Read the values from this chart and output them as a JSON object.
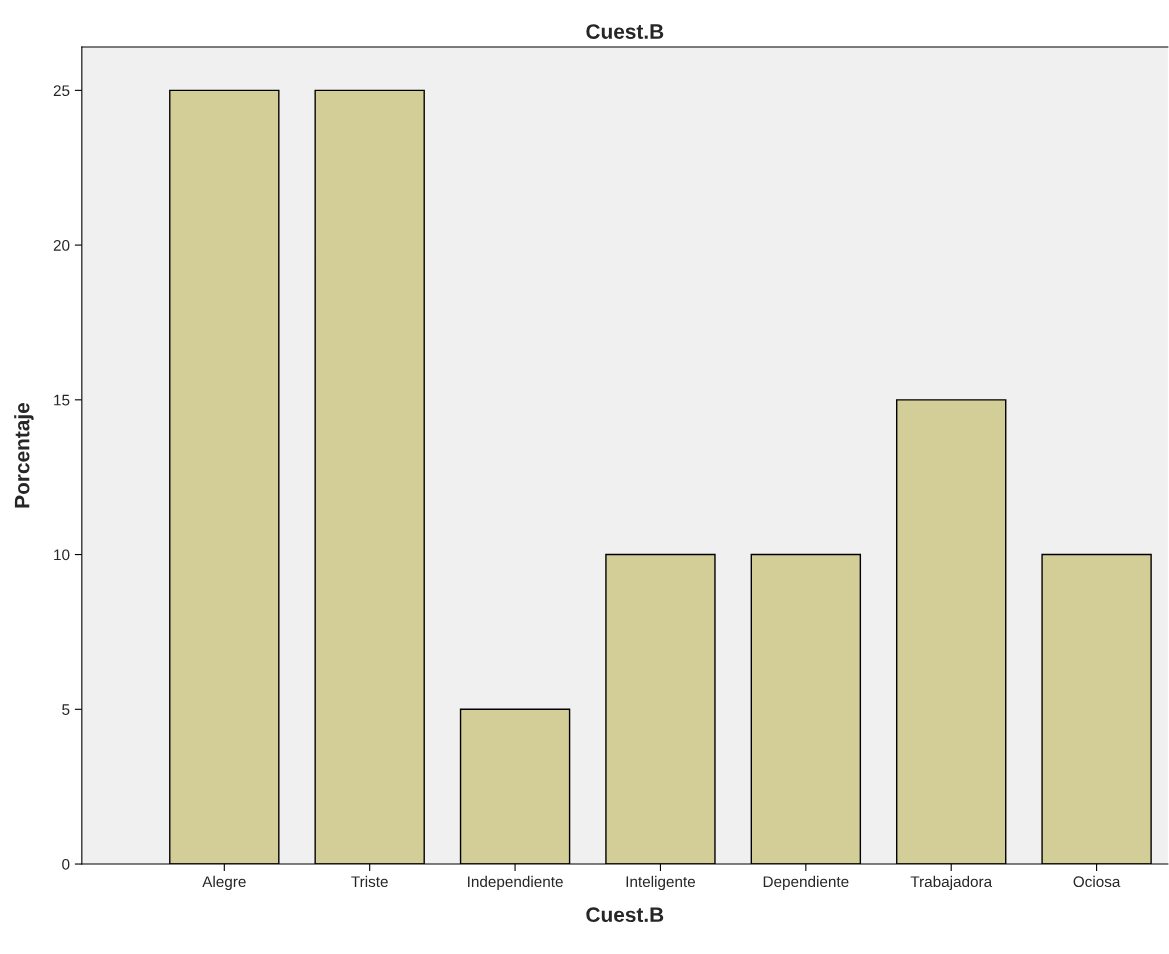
{
  "chart_data": {
    "type": "bar",
    "title": "Cuest.B",
    "xlabel": "Cuest.B",
    "ylabel": "Porcentaje",
    "categories": [
      "Alegre",
      "Triste",
      "Independiente",
      "Inteligente",
      "Dependiente",
      "Trabajadora",
      "Ociosa"
    ],
    "values": [
      25,
      25,
      5,
      10,
      10,
      15,
      10
    ],
    "color": "#d3ce97",
    "ylim": [
      0,
      26.4
    ],
    "yticks": [
      0,
      5,
      10,
      15,
      20,
      25
    ],
    "grid": false,
    "legend": false
  }
}
